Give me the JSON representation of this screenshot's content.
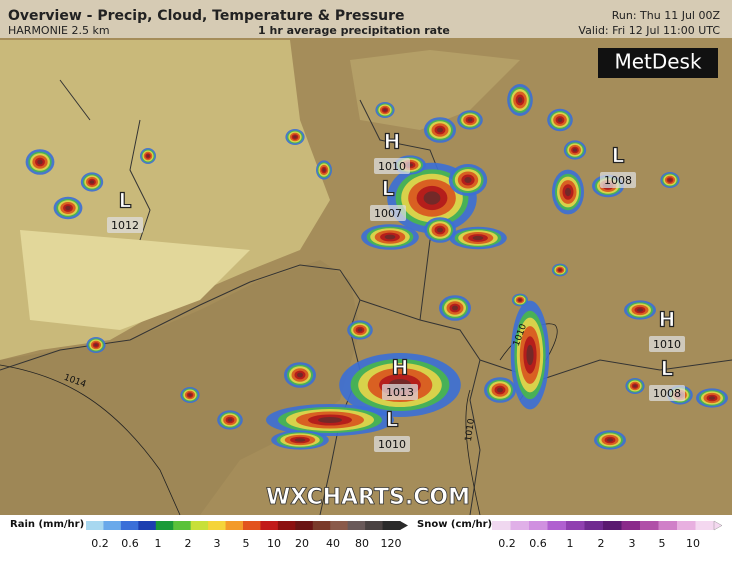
{
  "header": {
    "title": "Overview - Precip, Cloud, Temperature & Pressure",
    "model": "HARMONIE 2.5 km",
    "subtitle": "1 hr average precipitation rate",
    "run": "Run: Thu 11 Jul 00Z",
    "valid": "Valid: Fri 12 Jul 11:00 UTC",
    "logo": "MetDesk"
  },
  "pressure_systems": [
    {
      "symbol": "H",
      "value": 1010
    },
    {
      "symbol": "L",
      "value": 1007
    },
    {
      "symbol": "L",
      "value": 1008
    },
    {
      "symbol": "L",
      "value": 1012
    },
    {
      "symbol": "H",
      "value": 1010
    },
    {
      "symbol": "L",
      "value": 1008
    },
    {
      "symbol": "H",
      "value": 1013
    },
    {
      "symbol": "L",
      "value": 1010
    }
  ],
  "isobar_labels": [
    "1014",
    "1010",
    "1010"
  ],
  "watermark": "WXCHARTS.COM",
  "legend": {
    "rain": {
      "title": "Rain (mm/hr)",
      "ticks": [
        "0.2",
        "0.6",
        "1",
        "2",
        "3",
        "5",
        "10",
        "20",
        "40",
        "80",
        "120"
      ]
    },
    "snow": {
      "title": "Snow (cm/hr)",
      "ticks": [
        "0.2",
        "0.6",
        "1",
        "2",
        "3",
        "5",
        "10"
      ]
    }
  }
}
